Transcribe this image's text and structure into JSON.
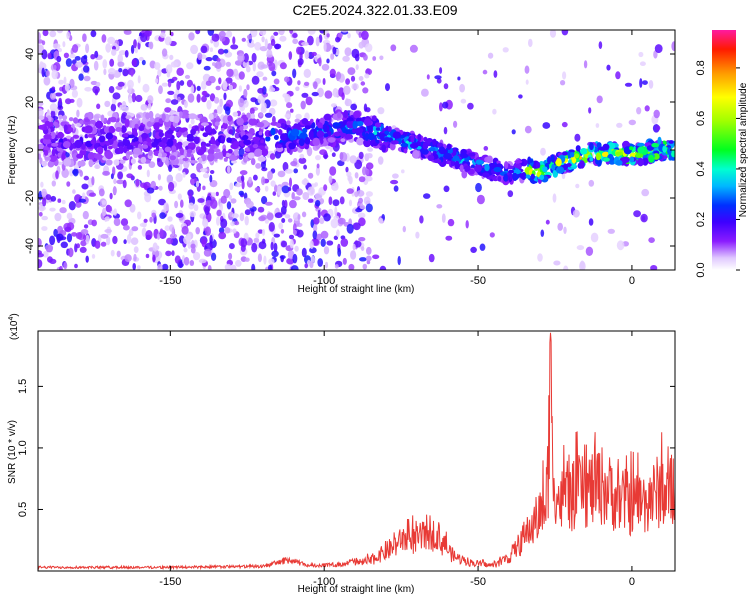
{
  "title": "C2E5.2024.322.01.33.E09",
  "chart_data": [
    {
      "type": "heatmap",
      "xlabel": "Height of straight line (km)",
      "ylabel": "Frequency (Hz)",
      "xlim": [
        -193,
        14
      ],
      "ylim": [
        -50,
        50
      ],
      "xticks": [
        -150,
        -100,
        -50,
        0
      ],
      "yticks": [
        -40,
        -20,
        0,
        20,
        40
      ],
      "colorbar": {
        "label": "Normalized spectral amplitude",
        "range": [
          0,
          0.95
        ],
        "ticks": [
          0.0,
          0.2,
          0.4,
          0.6,
          0.8
        ],
        "tick_labels": [
          "0.0",
          "0.2",
          "0.4",
          "0.6",
          "0.8"
        ]
      },
      "ridge": [
        {
          "x": -190,
          "y": 4
        },
        {
          "x": -150,
          "y": 5
        },
        {
          "x": -120,
          "y": 5
        },
        {
          "x": -110,
          "y": 6
        },
        {
          "x": -100,
          "y": 8
        },
        {
          "x": -90,
          "y": 10
        },
        {
          "x": -80,
          "y": 6
        },
        {
          "x": -70,
          "y": 2
        },
        {
          "x": -60,
          "y": -2
        },
        {
          "x": -50,
          "y": -6
        },
        {
          "x": -40,
          "y": -10
        },
        {
          "x": -35,
          "y": -8
        },
        {
          "x": -30,
          "y": -9
        },
        {
          "x": -20,
          "y": -4
        },
        {
          "x": -10,
          "y": -1
        },
        {
          "x": 0,
          "y": -2
        },
        {
          "x": 10,
          "y": 0
        },
        {
          "x": 14,
          "y": 1
        }
      ]
    },
    {
      "type": "line",
      "xlabel": "Height of straight line (km)",
      "ylabel": "SNR (10 * v/v)",
      "scale_label": "(x10",
      "scale_exp": "4",
      "scale_close": ")",
      "xlim": [
        -193,
        14
      ],
      "ylim": [
        0,
        1.95
      ],
      "xticks": [
        -150,
        -100,
        -50,
        0
      ],
      "yticks": [
        0.5,
        1.0,
        1.5
      ],
      "ytick_labels": [
        "0.5",
        "1.0",
        "1.5"
      ],
      "series": [
        {
          "color": "#e83a35",
          "envelope": [
            {
              "x": -193,
              "y": 0.04
            },
            {
              "x": -150,
              "y": 0.04
            },
            {
              "x": -120,
              "y": 0.05
            },
            {
              "x": -112,
              "y": 0.12
            },
            {
              "x": -105,
              "y": 0.06
            },
            {
              "x": -95,
              "y": 0.07
            },
            {
              "x": -85,
              "y": 0.15
            },
            {
              "x": -78,
              "y": 0.35
            },
            {
              "x": -73,
              "y": 0.5
            },
            {
              "x": -70,
              "y": 0.45
            },
            {
              "x": -66,
              "y": 0.6
            },
            {
              "x": -62,
              "y": 0.45
            },
            {
              "x": -58,
              "y": 0.22
            },
            {
              "x": -52,
              "y": 0.12
            },
            {
              "x": -45,
              "y": 0.08
            },
            {
              "x": -40,
              "y": 0.2
            },
            {
              "x": -35,
              "y": 0.5
            },
            {
              "x": -32,
              "y": 0.7
            },
            {
              "x": -28,
              "y": 1.0
            },
            {
              "x": -26.5,
              "y": 1.95
            },
            {
              "x": -24,
              "y": 1.05
            },
            {
              "x": -20,
              "y": 1.1
            },
            {
              "x": -15,
              "y": 1.2
            },
            {
              "x": -10,
              "y": 1.3
            },
            {
              "x": -5,
              "y": 1.1
            },
            {
              "x": 0,
              "y": 1.0
            },
            {
              "x": 5,
              "y": 1.05
            },
            {
              "x": 10,
              "y": 1.25
            },
            {
              "x": 14,
              "y": 0.95
            }
          ]
        }
      ]
    }
  ]
}
